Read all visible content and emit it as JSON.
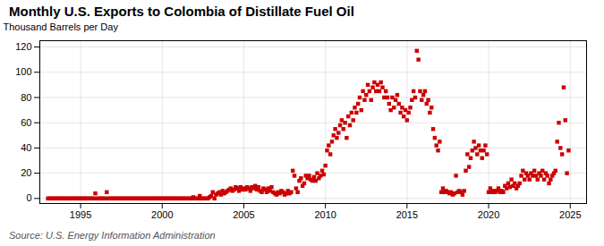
{
  "chart_data": {
    "type": "scatter",
    "title": "Monthly U.S. Exports to Colombia of Distillate Fuel Oil",
    "ylabel": "Thousand Barrels per Day",
    "source": "Source: U.S. Energy Information Administration",
    "color": "#cc0000",
    "marker": "square",
    "grid": true,
    "xlim": [
      1992.5,
      2026.0
    ],
    "ylim": [
      -4,
      125
    ],
    "xticks": [
      1995,
      2000,
      2005,
      2010,
      2015,
      2020,
      2025
    ],
    "yticks": [
      0,
      20,
      40,
      60,
      80,
      100,
      120
    ],
    "x": [
      1993.0,
      1993.1,
      1993.2,
      1993.3,
      1993.4,
      1993.5,
      1993.6,
      1993.7,
      1993.8,
      1993.9,
      1994.0,
      1994.1,
      1994.2,
      1994.3,
      1994.4,
      1994.5,
      1994.6,
      1994.7,
      1994.8,
      1994.9,
      1995.0,
      1995.1,
      1995.2,
      1995.3,
      1995.4,
      1995.5,
      1995.6,
      1995.7,
      1995.8,
      1995.9,
      1996.0,
      1996.1,
      1996.2,
      1996.3,
      1996.4,
      1996.5,
      1996.6,
      1996.7,
      1996.8,
      1996.9,
      1997.0,
      1997.1,
      1997.2,
      1997.3,
      1997.4,
      1997.5,
      1997.6,
      1997.7,
      1997.8,
      1997.9,
      1998.0,
      1998.1,
      1998.2,
      1998.3,
      1998.4,
      1998.5,
      1998.6,
      1998.7,
      1998.8,
      1998.9,
      1999.0,
      1999.1,
      1999.2,
      1999.3,
      1999.4,
      1999.5,
      1999.6,
      1999.7,
      1999.8,
      1999.9,
      2000.0,
      2000.1,
      2000.2,
      2000.3,
      2000.4,
      2000.5,
      2000.6,
      2000.7,
      2000.8,
      2000.9,
      2001.0,
      2001.1,
      2001.2,
      2001.3,
      2001.4,
      2001.5,
      2001.6,
      2001.7,
      2001.8,
      2001.9,
      2002.0,
      2002.1,
      2002.2,
      2002.3,
      2002.4,
      2002.5,
      2002.6,
      2002.7,
      2002.8,
      2002.9,
      2003.0,
      2003.1,
      2003.2,
      2003.3,
      2003.4,
      2003.5,
      2003.6,
      2003.7,
      2003.8,
      2003.9,
      2004.0,
      2004.1,
      2004.2,
      2004.3,
      2004.4,
      2004.5,
      2004.6,
      2004.7,
      2004.8,
      2004.9,
      2005.0,
      2005.1,
      2005.2,
      2005.3,
      2005.4,
      2005.5,
      2005.6,
      2005.7,
      2005.8,
      2005.9,
      2006.0,
      2006.1,
      2006.2,
      2006.3,
      2006.4,
      2006.5,
      2006.6,
      2006.7,
      2006.8,
      2006.9,
      2007.0,
      2007.1,
      2007.2,
      2007.3,
      2007.4,
      2007.5,
      2007.6,
      2007.7,
      2007.8,
      2007.9,
      2008.0,
      2008.1,
      2008.2,
      2008.3,
      2008.4,
      2008.5,
      2008.6,
      2008.7,
      2008.8,
      2008.9,
      2009.0,
      2009.1,
      2009.2,
      2009.3,
      2009.4,
      2009.5,
      2009.6,
      2009.7,
      2009.8,
      2009.9,
      2010.0,
      2010.1,
      2010.2,
      2010.3,
      2010.4,
      2010.5,
      2010.6,
      2010.7,
      2010.8,
      2010.9,
      2011.0,
      2011.1,
      2011.2,
      2011.3,
      2011.4,
      2011.5,
      2011.6,
      2011.7,
      2011.8,
      2011.9,
      2012.0,
      2012.1,
      2012.2,
      2012.3,
      2012.4,
      2012.5,
      2012.6,
      2012.7,
      2012.8,
      2012.9,
      2013.0,
      2013.1,
      2013.2,
      2013.3,
      2013.4,
      2013.5,
      2013.6,
      2013.7,
      2013.8,
      2013.9,
      2014.0,
      2014.1,
      2014.2,
      2014.3,
      2014.4,
      2014.5,
      2014.6,
      2014.7,
      2014.8,
      2014.9,
      2015.0,
      2015.1,
      2015.2,
      2015.3,
      2015.4,
      2015.5,
      2015.6,
      2015.7,
      2015.8,
      2015.9,
      2016.0,
      2016.1,
      2016.2,
      2016.3,
      2016.4,
      2016.5,
      2016.6,
      2016.7,
      2016.8,
      2016.9,
      2017.0,
      2017.1,
      2017.2,
      2017.3,
      2017.4,
      2017.5,
      2017.6,
      2017.7,
      2017.8,
      2017.9,
      2018.0,
      2018.1,
      2018.2,
      2018.3,
      2018.4,
      2018.5,
      2018.6,
      2018.7,
      2018.8,
      2018.9,
      2019.0,
      2019.1,
      2019.2,
      2019.3,
      2019.4,
      2019.5,
      2019.6,
      2019.7,
      2019.8,
      2019.9,
      2020.0,
      2020.1,
      2020.2,
      2020.3,
      2020.4,
      2020.5,
      2020.6,
      2020.7,
      2020.8,
      2020.9,
      2021.0,
      2021.1,
      2021.2,
      2021.3,
      2021.4,
      2021.5,
      2021.6,
      2021.7,
      2021.8,
      2021.9,
      2022.0,
      2022.1,
      2022.2,
      2022.3,
      2022.4,
      2022.5,
      2022.6,
      2022.7,
      2022.8,
      2022.9,
      2023.0,
      2023.1,
      2023.2,
      2023.3,
      2023.4,
      2023.5,
      2023.6,
      2023.7,
      2023.8,
      2023.9,
      2024.0,
      2024.1,
      2024.2,
      2024.3,
      2024.4,
      2024.5,
      2024.6,
      2024.7,
      2024.8,
      2024.9
    ],
    "values": [
      0.0,
      0.0,
      0.0,
      0.0,
      0.0,
      0.0,
      0.0,
      0.0,
      0.0,
      0.0,
      0.0,
      0.0,
      0.0,
      0.0,
      0.0,
      0.0,
      0.0,
      0.0,
      0.0,
      0.0,
      0.0,
      0.0,
      0.0,
      0.0,
      0.0,
      0.0,
      0.0,
      0.0,
      0.0,
      4.0,
      0.0,
      0.0,
      0.0,
      0.0,
      0.0,
      0.0,
      5.0,
      0.0,
      0.0,
      0.0,
      0.0,
      0.0,
      0.0,
      0.0,
      0.0,
      0.0,
      0.0,
      0.0,
      0.0,
      0.0,
      0.0,
      0.0,
      0.0,
      0.0,
      0.0,
      0.0,
      0.0,
      0.0,
      0.0,
      0.0,
      0.0,
      0.0,
      0.0,
      0.0,
      0.0,
      0.0,
      0.0,
      0.0,
      0.0,
      0.0,
      0.0,
      0.0,
      0.0,
      0.0,
      0.0,
      0.0,
      0.0,
      0.0,
      0.0,
      0.0,
      0.0,
      0.0,
      0.0,
      0.0,
      0.0,
      0.0,
      0.0,
      0.0,
      0.0,
      1.0,
      0.0,
      0.0,
      0.0,
      2.0,
      0.0,
      0.0,
      0.0,
      0.0,
      0.0,
      1.0,
      2.0,
      5.0,
      0.0,
      3.0,
      4.0,
      5.0,
      3.0,
      6.0,
      4.0,
      5.0,
      6.0,
      7.0,
      8.0,
      6.0,
      7.0,
      9.0,
      8.0,
      6.0,
      9.0,
      7.0,
      8.0,
      7.0,
      9.0,
      8.0,
      6.0,
      9.0,
      8.0,
      10.0,
      7.0,
      9.0,
      6.0,
      5.0,
      8.0,
      7.0,
      5.0,
      8.0,
      6.0,
      9.0,
      5.0,
      4.0,
      3.0,
      5.0,
      4.0,
      6.0,
      5.0,
      3.0,
      4.0,
      6.0,
      4.0,
      5.0,
      22.0,
      18.0,
      8.0,
      5.0,
      14.0,
      16.0,
      10.0,
      12.0,
      18.0,
      16.0,
      18.0,
      15.0,
      14.0,
      17.0,
      14.0,
      20.0,
      16.0,
      18.0,
      22.0,
      19.0,
      26.0,
      38.0,
      42.0,
      35.0,
      45.0,
      50.0,
      55.0,
      48.0,
      52.0,
      58.0,
      62.0,
      55.0,
      60.0,
      48.0,
      65.0,
      58.0,
      68.0,
      62.0,
      72.0,
      68.0,
      75.0,
      80.0,
      70.0,
      85.0,
      78.0,
      82.0,
      90.0,
      85.0,
      78.0,
      88.0,
      92.0,
      85.0,
      90.0,
      85.0,
      92.0,
      88.0,
      80.0,
      85.0,
      80.0,
      75.0,
      70.0,
      80.0,
      72.0,
      78.0,
      82.0,
      75.0,
      68.0,
      72.0,
      65.0,
      70.0,
      62.0,
      68.0,
      72.0,
      78.0,
      85.0,
      80.0,
      117.0,
      110.0,
      85.0,
      78.0,
      82.0,
      85.0,
      75.0,
      78.0,
      68.0,
      72.0,
      55.0,
      48.0,
      42.0,
      38.0,
      45.0,
      5.0,
      8.0,
      5.0,
      6.0,
      5.0,
      4.0,
      5.0,
      3.0,
      4.0,
      18.0,
      5.0,
      6.0,
      5.0,
      3.0,
      6.0,
      22.0,
      35.0,
      25.0,
      32.0,
      38.0,
      45.0,
      40.0,
      35.0,
      42.0,
      38.0,
      32.0,
      38.0,
      42.0,
      35.0,
      5.0,
      8.0,
      5.0,
      6.0,
      5.0,
      6.0,
      8.0,
      5.0,
      6.0,
      5.0,
      10.0,
      8.0,
      12.0,
      9.0,
      15.0,
      10.0,
      12.0,
      8.0,
      10.0,
      12.0,
      18.0,
      22.0,
      15.0,
      20.0,
      18.0,
      15.0,
      20.0,
      18.0,
      22.0,
      18.0,
      15.0,
      20.0,
      18.0,
      22.0,
      15.0,
      20.0,
      18.0,
      12.0,
      15.0,
      18.0,
      20.0,
      22.0,
      45.0,
      60.0,
      40.0,
      35.0,
      88.0,
      62.0,
      20.0,
      38.0
    ]
  }
}
